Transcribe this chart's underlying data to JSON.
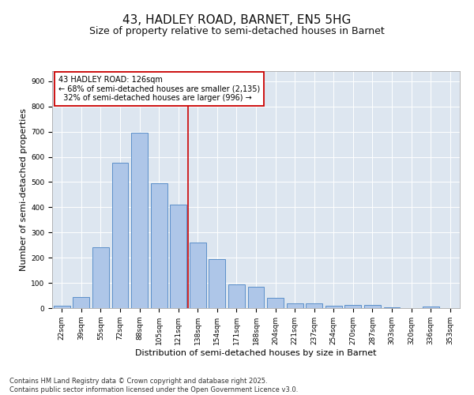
{
  "title": "43, HADLEY ROAD, BARNET, EN5 5HG",
  "subtitle": "Size of property relative to semi-detached houses in Barnet",
  "xlabel": "Distribution of semi-detached houses by size in Barnet",
  "ylabel": "Number of semi-detached properties",
  "categories": [
    "22sqm",
    "39sqm",
    "55sqm",
    "72sqm",
    "88sqm",
    "105sqm",
    "121sqm",
    "138sqm",
    "154sqm",
    "171sqm",
    "188sqm",
    "204sqm",
    "221sqm",
    "237sqm",
    "254sqm",
    "270sqm",
    "287sqm",
    "303sqm",
    "320sqm",
    "336sqm",
    "353sqm"
  ],
  "values": [
    10,
    45,
    240,
    575,
    695,
    495,
    410,
    260,
    195,
    95,
    85,
    40,
    18,
    18,
    10,
    12,
    12,
    2,
    0,
    5,
    0
  ],
  "bar_color": "#aec6e8",
  "bar_edge_color": "#5b8fc9",
  "bar_width": 0.85,
  "vline_x": 6.5,
  "vline_color": "#cc0000",
  "annotation_text": "43 HADLEY ROAD: 126sqm\n← 68% of semi-detached houses are smaller (2,135)\n  32% of semi-detached houses are larger (996) →",
  "annotation_box_color": "#cc0000",
  "background_color": "#dde6f0",
  "ylim": [
    0,
    940
  ],
  "yticks": [
    0,
    100,
    200,
    300,
    400,
    500,
    600,
    700,
    800,
    900
  ],
  "footer_line1": "Contains HM Land Registry data © Crown copyright and database right 2025.",
  "footer_line2": "Contains public sector information licensed under the Open Government Licence v3.0.",
  "title_fontsize": 11,
  "subtitle_fontsize": 9,
  "axis_label_fontsize": 8,
  "tick_fontsize": 6.5,
  "annotation_fontsize": 7,
  "footer_fontsize": 6
}
